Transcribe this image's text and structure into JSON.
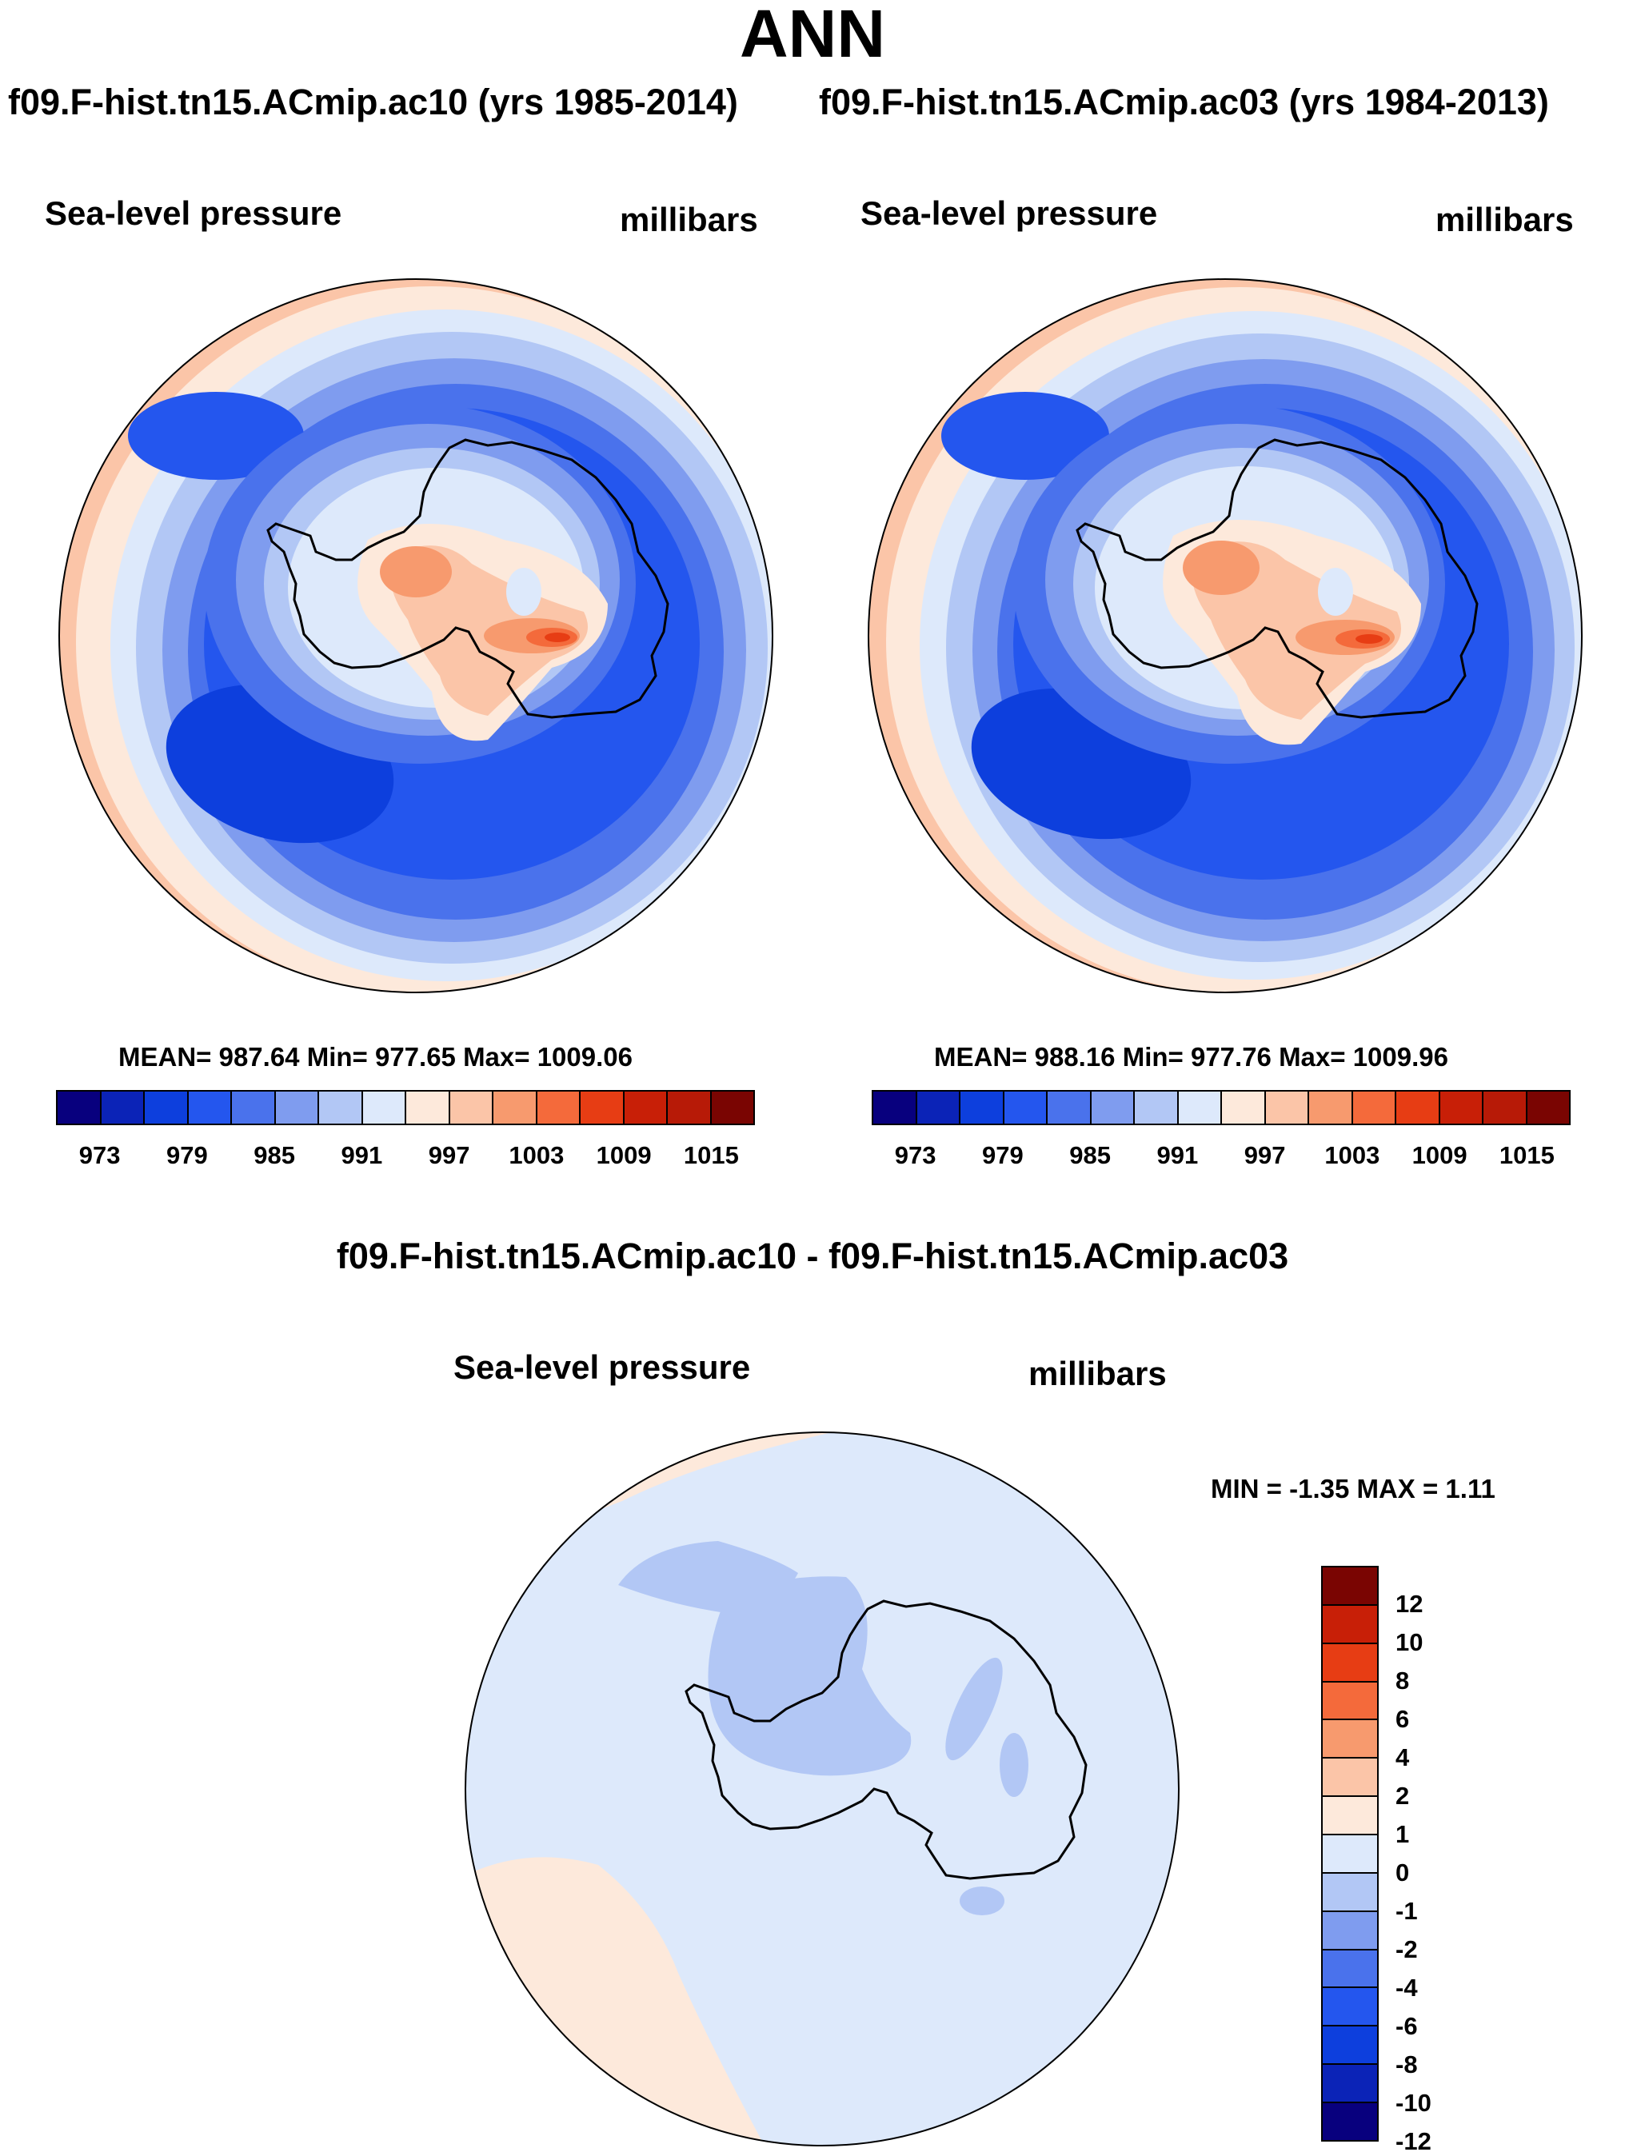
{
  "figure": {
    "title": "ANN",
    "subtitle_left": "f09.F-hist.tn15.ACmip.ac10 (yrs 1985-2014)",
    "subtitle_right": "f09.F-hist.tn15.ACmip.ac03 (yrs 1984-2013)",
    "diff_title": "f09.F-hist.tn15.ACmip.ac10 - f09.F-hist.tn15.ACmip.ac03"
  },
  "panel_left": {
    "label": "Sea-level pressure",
    "units": "millibars",
    "stats": "MEAN= 987.64  Min= 977.65  Max= 1009.06"
  },
  "panel_right": {
    "label": "Sea-level pressure",
    "units": "millibars",
    "stats": "MEAN= 988.16  Min= 977.76  Max= 1009.96"
  },
  "panel_diff": {
    "label": "Sea-level pressure",
    "units": "millibars",
    "stats": "MIN =  -1.35 MAX =   1.11"
  },
  "colors": {
    "abs_levels": [
      "#08007e",
      "#0b23b7",
      "#0d3fdd",
      "#2456ee",
      "#4a72ec",
      "#7f9cef",
      "#b2c7f5",
      "#dde9fb",
      "#fde9db",
      "#fbc5a8",
      "#f79a6e",
      "#f46a3b",
      "#e73d14",
      "#c81f07",
      "#b71a07",
      "#7a0502"
    ],
    "diff_levels": [
      "#08007e",
      "#0b23b7",
      "#0d3fdd",
      "#2456ee",
      "#4a72ec",
      "#7f9cef",
      "#b2c7f5",
      "#dde9fb",
      "#fde9db",
      "#fbc5a8",
      "#f79a6e",
      "#f46a3b",
      "#e73d14",
      "#c81f07",
      "#7a0502"
    ]
  },
  "chart_data": [
    {
      "type": "heatmap",
      "title": "Sea-level pressure",
      "subtitle": "f09.F-hist.tn15.ACmip.ac10 (yrs 1985-2014)",
      "units": "millibars",
      "projection": "south-polar stereographic",
      "contour_levels": [
        970,
        973,
        976,
        979,
        982,
        985,
        988,
        991,
        994,
        997,
        1000,
        1003,
        1006,
        1009,
        1012,
        1015
      ],
      "colorbar_tick_labels": [
        "973",
        "979",
        "985",
        "991",
        "997",
        "1003",
        "1009",
        "1015"
      ],
      "mean": 987.64,
      "min": 977.65,
      "max": 1009.06
    },
    {
      "type": "heatmap",
      "title": "Sea-level pressure",
      "subtitle": "f09.F-hist.tn15.ACmip.ac03 (yrs 1984-2013)",
      "units": "millibars",
      "projection": "south-polar stereographic",
      "contour_levels": [
        970,
        973,
        976,
        979,
        982,
        985,
        988,
        991,
        994,
        997,
        1000,
        1003,
        1006,
        1009,
        1012,
        1015
      ],
      "colorbar_tick_labels": [
        "973",
        "979",
        "985",
        "991",
        "997",
        "1003",
        "1009",
        "1015"
      ],
      "mean": 988.16,
      "min": 977.76,
      "max": 1009.96
    },
    {
      "type": "heatmap",
      "title": "Sea-level pressure",
      "subtitle": "f09.F-hist.tn15.ACmip.ac10 - f09.F-hist.tn15.ACmip.ac03",
      "units": "millibars",
      "projection": "south-polar stereographic",
      "colorbar_tick_labels": [
        "12",
        "10",
        "8",
        "6",
        "4",
        "2",
        "1",
        "0",
        "-1",
        "-2",
        "-4",
        "-6",
        "-8",
        "-10",
        "-12"
      ],
      "min": -1.35,
      "max": 1.11
    }
  ],
  "colorbar_abs": {
    "ticks": [
      {
        "label": "973",
        "index": 1
      },
      {
        "label": "979",
        "index": 3
      },
      {
        "label": "985",
        "index": 5
      },
      {
        "label": "991",
        "index": 7
      },
      {
        "label": "997",
        "index": 9
      },
      {
        "label": "1003",
        "index": 11
      },
      {
        "label": "1009",
        "index": 13
      },
      {
        "label": "1015",
        "index": 15
      }
    ]
  },
  "colorbar_diff": {
    "ticks": [
      "12",
      "10",
      "8",
      "6",
      "4",
      "2",
      "1",
      "0",
      "-1",
      "-2",
      "-4",
      "-6",
      "-8",
      "-10",
      "-12"
    ]
  }
}
